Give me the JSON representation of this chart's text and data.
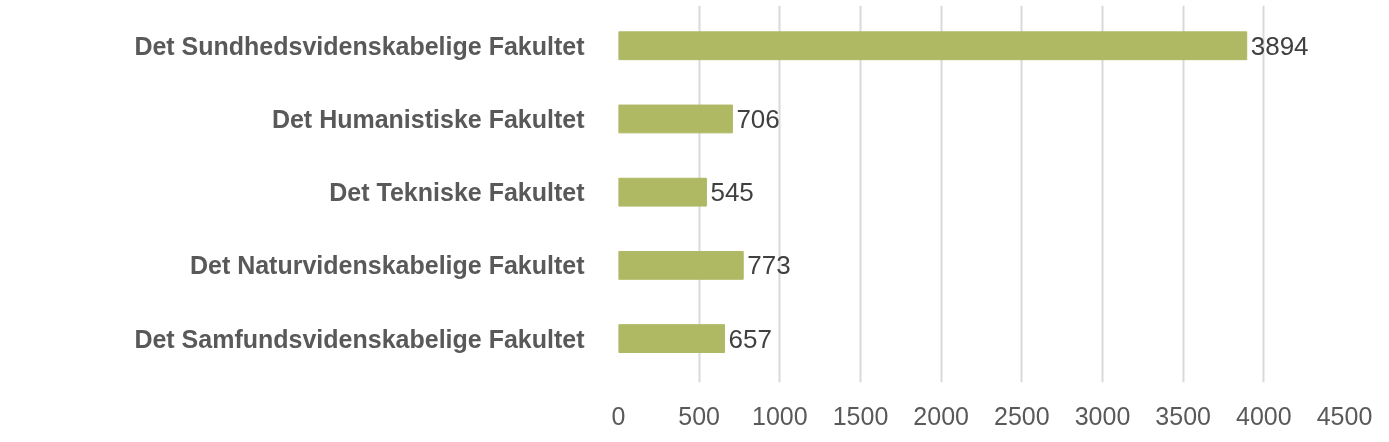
{
  "chart_data": {
    "type": "bar",
    "orientation": "horizontal",
    "categories": [
      "Det Sundhedsvidenskabelige Fakultet",
      "Det Humanistiske Fakultet",
      "Det Tekniske Fakultet",
      "Det Naturvidenskabelige Fakultet",
      "Det Samfundsvidenskabelige Fakultet"
    ],
    "values": [
      3894,
      706,
      545,
      773,
      657
    ],
    "color": "#afb964",
    "xlim": [
      0,
      4500
    ],
    "xticks": [
      0,
      500,
      1000,
      1500,
      2000,
      2500,
      3000,
      3500,
      4000,
      4500
    ],
    "grid": "x",
    "data_labels": true
  }
}
